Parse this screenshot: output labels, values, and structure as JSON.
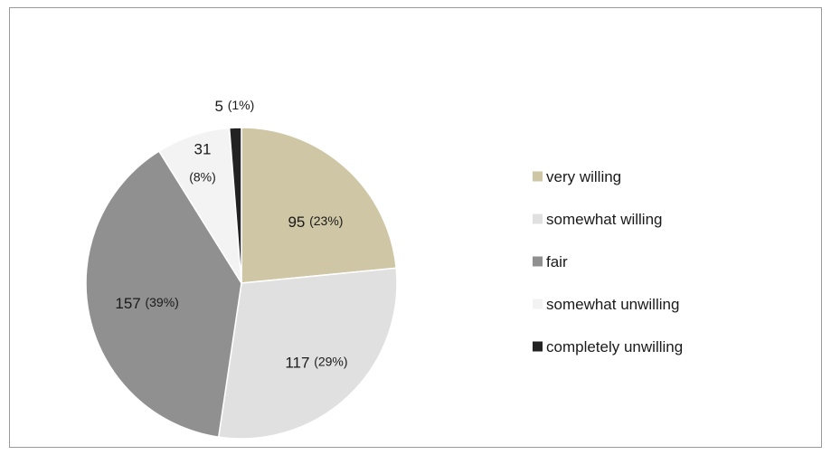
{
  "chart_data": {
    "type": "pie",
    "title": "",
    "legend_position": "right",
    "slices": [
      {
        "label": "very willing",
        "value": 95,
        "percent_label": "(23%)",
        "color": "#cec6a4"
      },
      {
        "label": "somewhat willing",
        "value": 117,
        "percent_label": "(29%)",
        "color": "#e0e0e0"
      },
      {
        "label": "fair",
        "value": 157,
        "percent_label": "(39%)",
        "color": "#909090"
      },
      {
        "label": "somewhat unwilling",
        "value": 31,
        "percent_label": "(8%)",
        "color": "#f3f3f3"
      },
      {
        "label": "completely unwilling",
        "value": 5,
        "percent_label": "(1%)",
        "color": "#222222"
      }
    ]
  }
}
